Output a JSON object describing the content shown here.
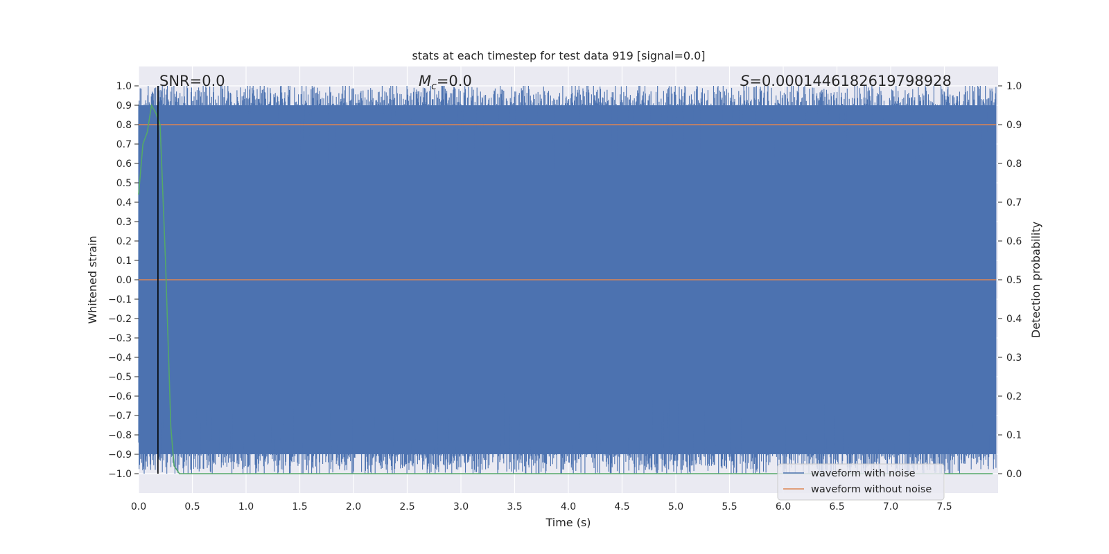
{
  "chart_data": {
    "type": "line",
    "title": "stats at each timestep for test data 919 [signal=0.0]",
    "xlabel": "Time (s)",
    "ylabel": "Whitened strain",
    "y2label": "Detection probability",
    "xlim": [
      0.0,
      8.0
    ],
    "ylim": [
      -1.1,
      1.1
    ],
    "y2lim": [
      -0.05,
      1.05
    ],
    "xticks": [
      "0.0",
      "0.5",
      "1.0",
      "1.5",
      "2.0",
      "2.5",
      "3.0",
      "3.5",
      "4.0",
      "4.5",
      "5.0",
      "5.5",
      "6.0",
      "6.5",
      "7.0",
      "7.5"
    ],
    "yticks": [
      "1.0",
      "0.9",
      "0.8",
      "0.7",
      "0.6",
      "0.5",
      "0.4",
      "0.3",
      "0.2",
      "0.1",
      "0.0",
      "−0.1",
      "−0.2",
      "−0.3",
      "−0.4",
      "−0.5",
      "−0.6",
      "−0.7",
      "−0.8",
      "−0.9",
      "−1.0"
    ],
    "y2ticks": [
      "0.0",
      "0.1",
      "0.2",
      "0.3",
      "0.4",
      "0.5",
      "0.6",
      "0.7",
      "0.8",
      "0.9",
      "1.0"
    ],
    "grid": true,
    "legend_position": "lower-right",
    "annotations": {
      "snr": {
        "prefix": "SNR=",
        "value": "0.0"
      },
      "mc": {
        "symbol": "M",
        "subscript": "c",
        "value": "=0.0"
      },
      "s": {
        "symbol": "S",
        "value": "=0.0001446182619798928"
      }
    },
    "vline_x": 0.18,
    "series": [
      {
        "name": "waveform with noise",
        "color": "#4c72b0",
        "axis": "left",
        "description_band": {
          "upper": 1.0,
          "lower": -1.0,
          "typical_upper": 0.9,
          "typical_lower": -0.9
        }
      },
      {
        "name": "waveform without noise",
        "color": "#dd8452",
        "axis": "left",
        "x": [
          0.0,
          8.0
        ],
        "y": [
          0.0,
          0.0
        ]
      },
      {
        "name": "",
        "color": "#55a868",
        "axis": "right",
        "x": [
          0.0,
          0.04,
          0.08,
          0.12,
          0.16,
          0.2,
          0.25,
          0.3,
          0.33,
          0.38,
          0.45,
          1.0,
          2.0,
          4.0,
          6.0,
          7.95
        ],
        "y": [
          0.72,
          0.85,
          0.88,
          0.95,
          0.93,
          0.9,
          0.55,
          0.12,
          0.02,
          0.0,
          0.0,
          0.0,
          0.0,
          0.0,
          0.0,
          0.0
        ]
      },
      {
        "name": "",
        "color": "#dd8452",
        "axis": "right",
        "x": [
          0.0,
          8.0
        ],
        "y": [
          0.9,
          0.9
        ]
      }
    ]
  }
}
